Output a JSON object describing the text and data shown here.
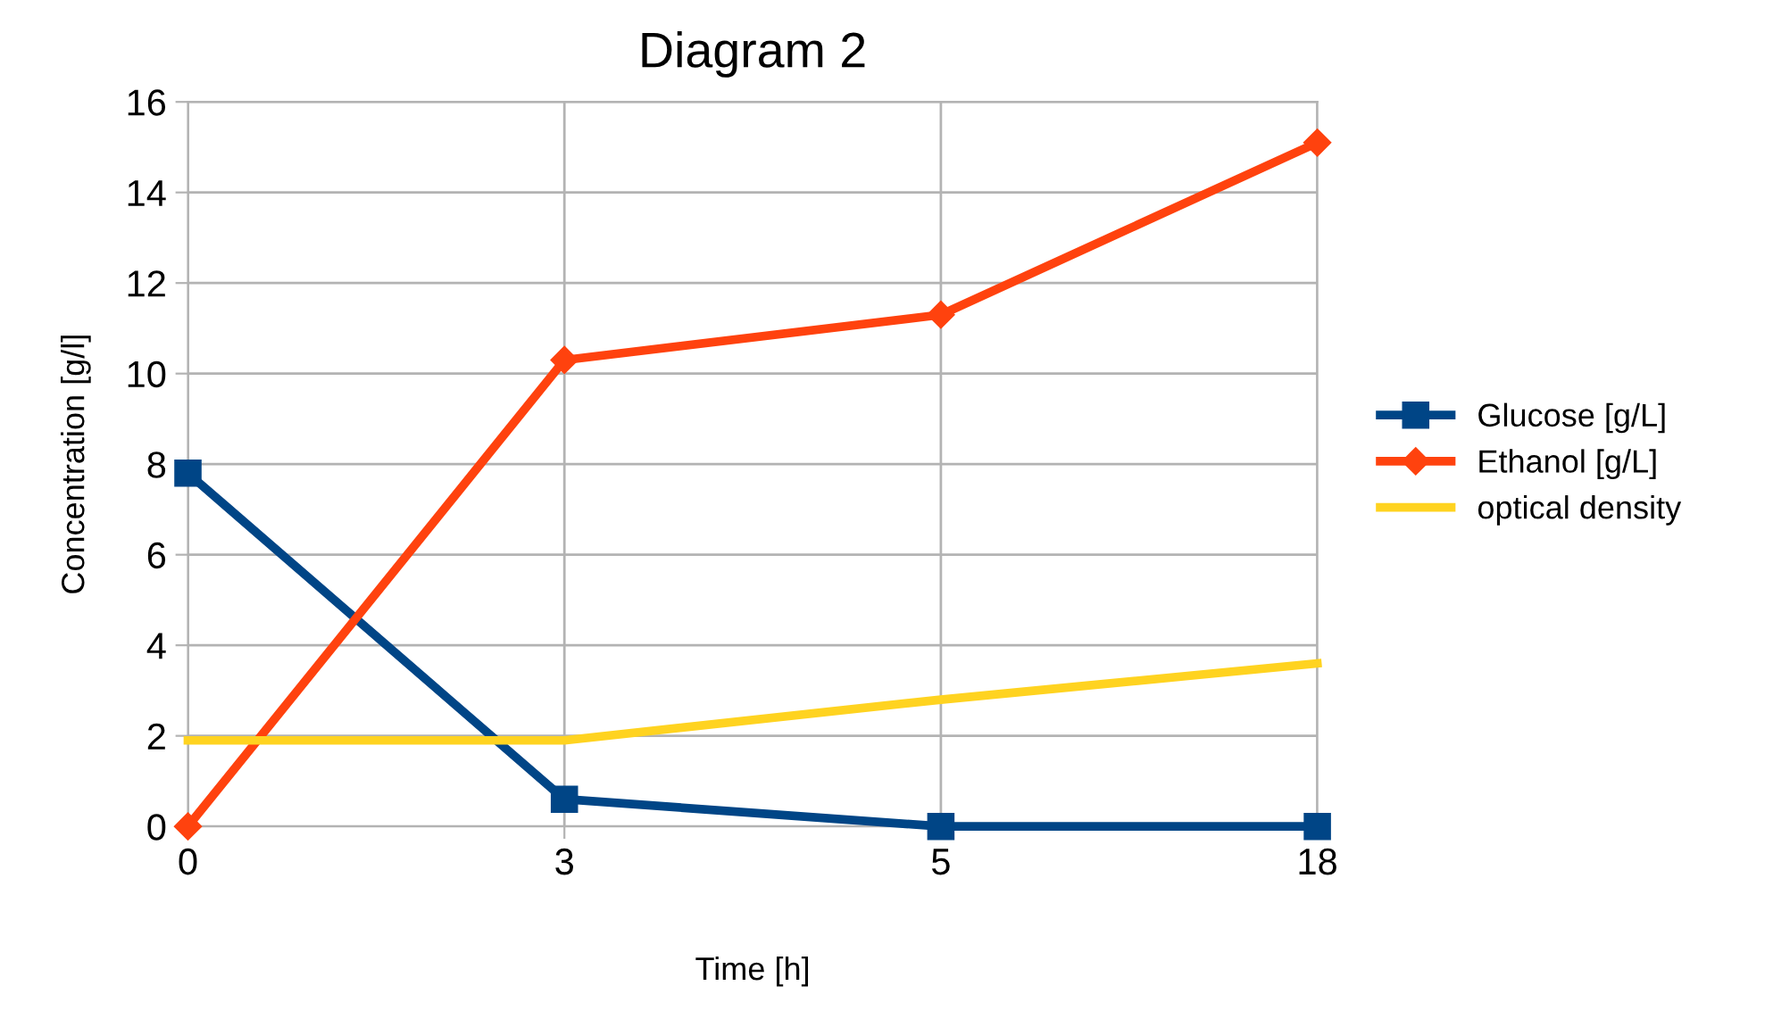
{
  "chart_data": {
    "type": "line",
    "title": "Diagram 2",
    "xlabel": "Time [h]",
    "ylabel": "Concentration [g/l]",
    "categories": [
      "0",
      "3",
      "5",
      "18"
    ],
    "series": [
      {
        "name": "Glucose [g/L]",
        "color": "#004586",
        "marker": "square",
        "values": [
          7.8,
          0.6,
          0,
          0
        ]
      },
      {
        "name": "Ethanol [g/L]",
        "color": "#ff420e",
        "marker": "diamond",
        "values": [
          0,
          10.3,
          11.3,
          15.1
        ]
      },
      {
        "name": "optical density",
        "color": "#ffd320",
        "marker": "none",
        "values": [
          1.9,
          1.9,
          2.8,
          3.6
        ]
      }
    ],
    "ylim": [
      0,
      16
    ],
    "yticks": [
      0,
      2,
      4,
      6,
      8,
      10,
      12,
      14,
      16
    ],
    "grid": true,
    "legend": "right"
  }
}
